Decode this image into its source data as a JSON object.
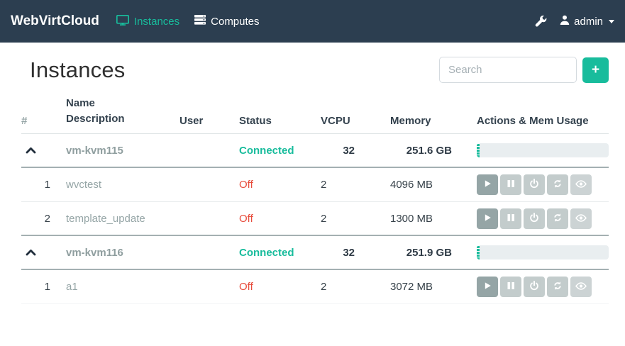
{
  "colors": {
    "accent": "#18BC9C",
    "navbar_bg": "#2C3E50",
    "danger": "#E74C3C"
  },
  "navbar": {
    "brand": "WebVirtCloud",
    "items": [
      {
        "label": "Instances",
        "icon": "monitor-icon",
        "active": true
      },
      {
        "label": "Computes",
        "icon": "server-icon",
        "active": false
      }
    ],
    "tools_icon": "wrench-icon",
    "user": {
      "name": "admin",
      "icon": "user-icon"
    }
  },
  "page": {
    "title": "Instances"
  },
  "search": {
    "placeholder": "Search"
  },
  "add_button": {
    "label": "+"
  },
  "table": {
    "headers": {
      "hash": "#",
      "name": "Name",
      "description": "Description",
      "user": "User",
      "status": "Status",
      "vcpu": "VCPU",
      "memory": "Memory",
      "actions": "Actions & Mem Usage"
    },
    "rows": [
      {
        "type": "host",
        "name": "vm-kvm115",
        "status": "Connected",
        "vcpu": "32",
        "memory": "251.6 GB",
        "mem_usage_percent": 2
      },
      {
        "type": "vm",
        "index": "1",
        "name": "wvctest",
        "user": "",
        "status": "Off",
        "vcpu": "2",
        "memory": "4096 MB",
        "actions": [
          "play",
          "pause",
          "power",
          "refresh",
          "eye"
        ]
      },
      {
        "type": "vm",
        "index": "2",
        "name": "template_update",
        "user": "",
        "status": "Off",
        "vcpu": "2",
        "memory": "1300 MB",
        "actions": [
          "play",
          "pause",
          "power",
          "refresh",
          "eye"
        ],
        "group_end": true
      },
      {
        "type": "host",
        "name": "vm-kvm116",
        "status": "Connected",
        "vcpu": "32",
        "memory": "251.9 GB",
        "mem_usage_percent": 2
      },
      {
        "type": "vm",
        "index": "1",
        "name": "a1",
        "user": "",
        "status": "Off",
        "vcpu": "2",
        "memory": "3072 MB",
        "actions": [
          "play",
          "pause",
          "power",
          "refresh",
          "eye"
        ],
        "last": true
      }
    ]
  }
}
